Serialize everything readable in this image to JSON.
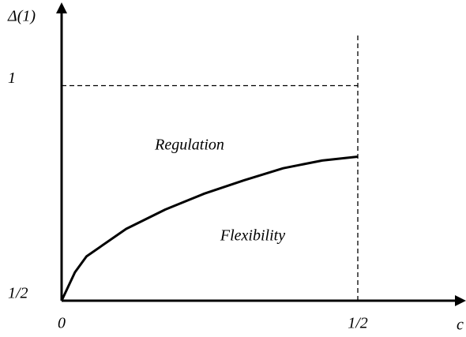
{
  "chart_data": {
    "type": "line",
    "x_label": "c",
    "y_label": "Δ(1)",
    "annotations": [
      "Regulation",
      "Flexibility"
    ],
    "x": [
      0,
      0.0225,
      0.042,
      0.109,
      0.175,
      0.241,
      0.308,
      0.374,
      0.44,
      0.5
    ],
    "values": [
      0.5,
      0.566,
      0.603,
      0.667,
      0.712,
      0.749,
      0.78,
      0.808,
      0.826,
      0.835
    ],
    "color": "#000000",
    "xlim": [
      0,
      0.68
    ],
    "ylim": [
      0.5,
      1.19
    ],
    "xticks": [
      0,
      {
        "value": 0.5,
        "label": "1/2"
      }
    ],
    "yticks": [
      {
        "value": 0.5,
        "label": "1/2"
      },
      1
    ]
  }
}
